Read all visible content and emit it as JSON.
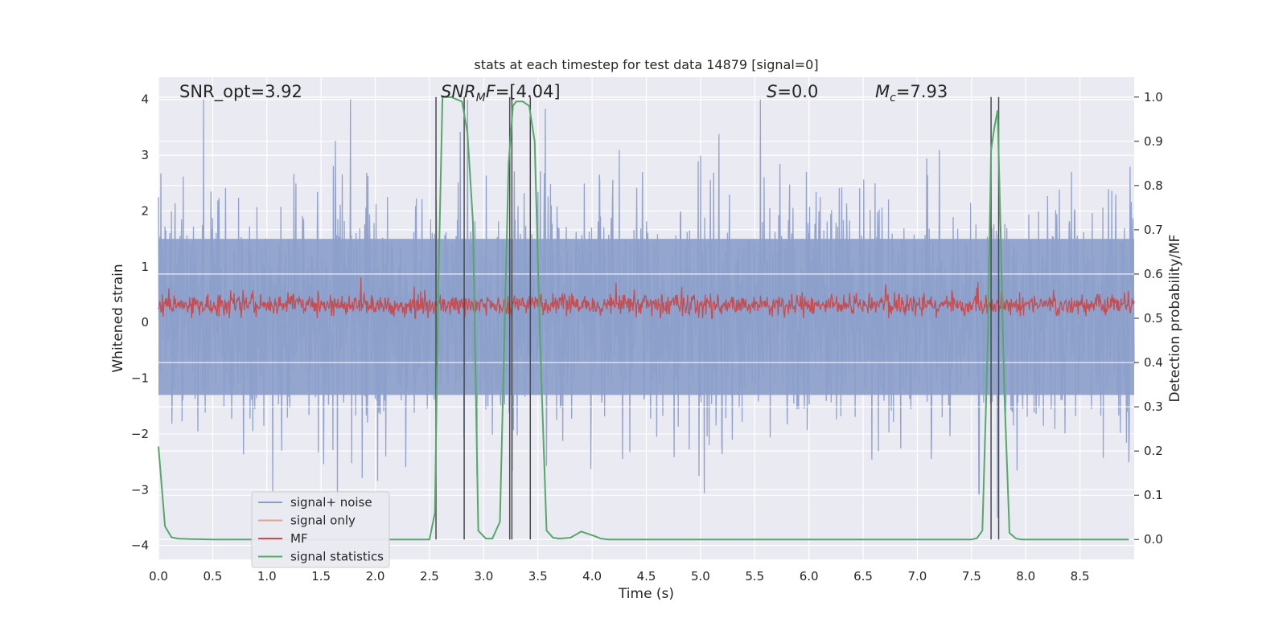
{
  "chart_data": {
    "type": "line",
    "title": "stats at each timestep for test data 14879 [signal=0]",
    "xlabel": "Time (s)",
    "ylabel": "Whitened strain",
    "ylabel_right": "Detection probability/MF",
    "xlim": [
      0.0,
      9.0
    ],
    "ylim": [
      -4.25,
      4.4
    ],
    "ylim_right": [
      -0.045,
      1.045
    ],
    "x_ticks": [
      0.0,
      0.5,
      1.0,
      1.5,
      2.0,
      2.5,
      3.0,
      3.5,
      4.0,
      4.5,
      5.0,
      5.5,
      6.0,
      6.5,
      7.0,
      7.5,
      8.0,
      8.5
    ],
    "x_tick_labels": [
      "0.0",
      "0.5",
      "1.0",
      "1.5",
      "2.0",
      "2.5",
      "3.0",
      "3.5",
      "4.0",
      "4.5",
      "5.0",
      "5.5",
      "6.0",
      "6.5",
      "7.0",
      "7.5",
      "8.0",
      "8.5"
    ],
    "y_ticks": [
      4,
      3,
      2,
      1,
      0,
      -1,
      -2,
      -3,
      -4
    ],
    "y_tick_labels": [
      "4",
      "3",
      "2",
      "1",
      "0",
      "−1",
      "−2",
      "−3",
      "−4"
    ],
    "y_right_ticks": [
      1.0,
      0.9,
      0.8,
      0.7,
      0.6,
      0.5,
      0.4,
      0.3,
      0.2,
      0.1,
      0.0
    ],
    "y_right_tick_labels": [
      "1.0",
      "0.9",
      "0.8",
      "0.7",
      "0.6",
      "0.5",
      "0.4",
      "0.3",
      "0.2",
      "0.1",
      "0.0"
    ],
    "annotations": {
      "snr_opt": "SNR_opt=3.92",
      "snr_mf_main": "SNR",
      "snr_mf_sub": "M",
      "snr_mf_f": "F",
      "snr_mf_val": "=[4.04]",
      "s_sym": "S",
      "s_val": "=0.0",
      "mc_sym": "M",
      "mc_sub": "c",
      "mc_val": "=7.93"
    },
    "series": [
      {
        "name": "signal+ noise",
        "color": "#8c9fcb",
        "stats": {
          "x_start": 0.0,
          "x_end": 9.0,
          "approx_min": -3.65,
          "approx_max": 4.0,
          "lower_band": -1.3,
          "upper_band": 1.5
        }
      },
      {
        "name": "signal only",
        "color": "#e8a386",
        "values": []
      },
      {
        "name": "MF",
        "color": "#c44e52",
        "stats": {
          "axis": "right",
          "approx_center": 0.53,
          "approx_min": 0.5,
          "approx_max": 0.61
        }
      },
      {
        "name": "signal statistics",
        "color": "#55a868",
        "axis": "right",
        "x": [
          0.0,
          0.06,
          0.12,
          0.18,
          0.3,
          0.5,
          1.0,
          1.5,
          2.0,
          2.5,
          2.55,
          2.58,
          2.62,
          2.7,
          2.8,
          2.85,
          2.9,
          2.95,
          3.02,
          3.08,
          3.15,
          3.18,
          3.23,
          3.27,
          3.3,
          3.36,
          3.42,
          3.47,
          3.52,
          3.58,
          3.64,
          3.7,
          3.8,
          3.9,
          4.02,
          4.08,
          4.15,
          4.5,
          5.0,
          5.5,
          6.0,
          6.5,
          7.0,
          7.5,
          7.55,
          7.6,
          7.65,
          7.68,
          7.71,
          7.74,
          7.77,
          7.8,
          7.85,
          7.91,
          7.96,
          8.5,
          8.95
        ],
        "values": [
          0.21,
          0.03,
          0.005,
          0.002,
          0.001,
          0.0,
          0.0,
          0.0,
          0.0,
          0.0,
          0.06,
          0.55,
          1.0,
          1.0,
          0.99,
          0.92,
          0.72,
          0.02,
          0.002,
          0.002,
          0.04,
          0.35,
          0.85,
          0.98,
          0.99,
          0.99,
          0.98,
          0.9,
          0.45,
          0.02,
          0.004,
          0.002,
          0.004,
          0.018,
          0.008,
          0.002,
          0.0,
          0.0,
          0.0,
          0.0,
          0.0,
          0.0,
          0.0,
          0.0,
          0.003,
          0.02,
          0.45,
          0.88,
          0.93,
          0.97,
          0.68,
          0.35,
          0.015,
          0.002,
          0.0,
          0.0,
          0.0
        ]
      }
    ],
    "vertical_markers": [
      2.56,
      2.82,
      3.24,
      3.26,
      3.43,
      7.68,
      7.75
    ],
    "legend": {
      "placement": "lower-left",
      "entries": [
        "signal+ noise",
        "signal only",
        "MF",
        "signal statistics"
      ]
    },
    "grid": true
  }
}
